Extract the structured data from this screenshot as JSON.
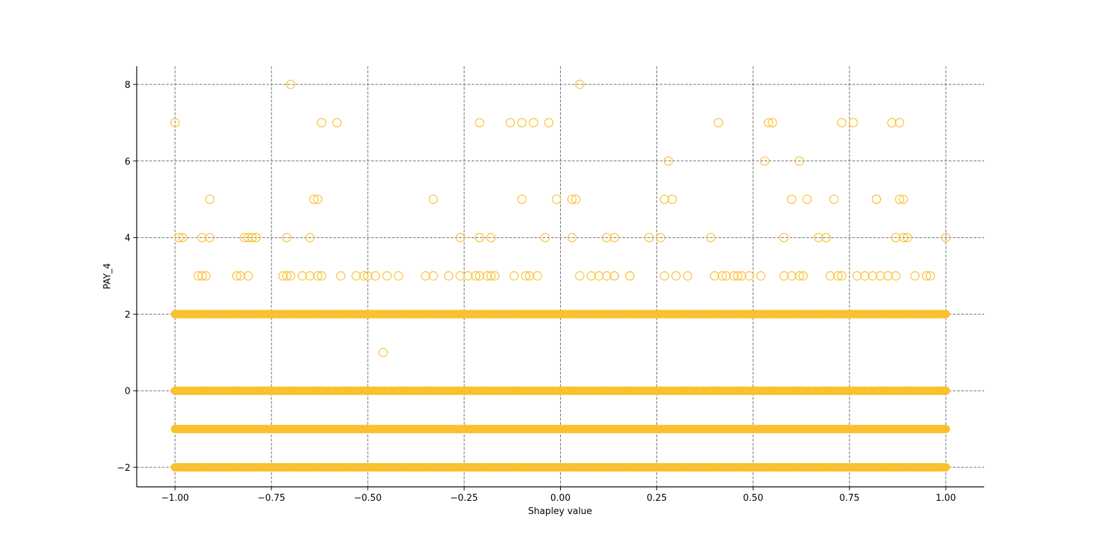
{
  "chart_data": {
    "type": "scatter",
    "title": "",
    "xlabel": "Shapley value",
    "ylabel": "PAY_4",
    "xlim": [
      -1.1,
      1.1
    ],
    "ylim": [
      -2.5,
      8.5
    ],
    "xticks": [
      -1.0,
      -0.75,
      -0.5,
      -0.25,
      0.0,
      0.25,
      0.5,
      0.75,
      1.0
    ],
    "xtick_labels": [
      "−1.00",
      "−0.75",
      "−0.50",
      "−0.25",
      "0.00",
      "0.25",
      "0.50",
      "0.75",
      "1.00"
    ],
    "yticks": [
      -2,
      0,
      2,
      4,
      6,
      8
    ],
    "ytick_labels": [
      "−2",
      "0",
      "2",
      "4",
      "6",
      "8"
    ],
    "grid": true,
    "grid_style": "dashed",
    "legend": null,
    "marker": "hollow-circle",
    "marker_color": "#FBC02D",
    "grid_color": "#707070",
    "dense_bands": [
      {
        "y": 2,
        "x_range": [
          -1.0,
          1.0
        ],
        "note": "many overlapping points spanning full range"
      },
      {
        "y": 0,
        "x_range": [
          -1.0,
          1.0
        ],
        "note": "many overlapping points spanning full range"
      },
      {
        "y": -1,
        "x_range": [
          -1.0,
          1.0
        ],
        "note": "many overlapping points spanning full range"
      },
      {
        "y": -2,
        "x_range": [
          -1.0,
          1.0
        ],
        "note": "many overlapping points spanning full range"
      }
    ],
    "points": [
      {
        "x": -0.7,
        "y": 8
      },
      {
        "x": 0.05,
        "y": 8
      },
      {
        "x": -1.0,
        "y": 7
      },
      {
        "x": -0.62,
        "y": 7
      },
      {
        "x": -0.58,
        "y": 7
      },
      {
        "x": -0.21,
        "y": 7
      },
      {
        "x": -0.13,
        "y": 7
      },
      {
        "x": -0.1,
        "y": 7
      },
      {
        "x": -0.07,
        "y": 7
      },
      {
        "x": -0.03,
        "y": 7
      },
      {
        "x": 0.41,
        "y": 7
      },
      {
        "x": 0.54,
        "y": 7
      },
      {
        "x": 0.55,
        "y": 7
      },
      {
        "x": 0.73,
        "y": 7
      },
      {
        "x": 0.76,
        "y": 7
      },
      {
        "x": 0.86,
        "y": 7
      },
      {
        "x": 0.88,
        "y": 7
      },
      {
        "x": 0.28,
        "y": 6
      },
      {
        "x": 0.53,
        "y": 6
      },
      {
        "x": 0.62,
        "y": 6
      },
      {
        "x": -0.91,
        "y": 5
      },
      {
        "x": -0.64,
        "y": 5
      },
      {
        "x": -0.63,
        "y": 5
      },
      {
        "x": -0.33,
        "y": 5
      },
      {
        "x": -0.1,
        "y": 5
      },
      {
        "x": -0.01,
        "y": 5
      },
      {
        "x": 0.03,
        "y": 5
      },
      {
        "x": 0.04,
        "y": 5
      },
      {
        "x": 0.27,
        "y": 5
      },
      {
        "x": 0.29,
        "y": 5
      },
      {
        "x": 0.6,
        "y": 5
      },
      {
        "x": 0.64,
        "y": 5
      },
      {
        "x": 0.71,
        "y": 5
      },
      {
        "x": 0.82,
        "y": 5
      },
      {
        "x": 0.82,
        "y": 5
      },
      {
        "x": 0.88,
        "y": 5
      },
      {
        "x": 0.89,
        "y": 5
      },
      {
        "x": -0.99,
        "y": 4
      },
      {
        "x": -0.98,
        "y": 4
      },
      {
        "x": -0.93,
        "y": 4
      },
      {
        "x": -0.91,
        "y": 4
      },
      {
        "x": -0.82,
        "y": 4
      },
      {
        "x": -0.81,
        "y": 4
      },
      {
        "x": -0.8,
        "y": 4
      },
      {
        "x": -0.79,
        "y": 4
      },
      {
        "x": -0.71,
        "y": 4
      },
      {
        "x": -0.65,
        "y": 4
      },
      {
        "x": -0.26,
        "y": 4
      },
      {
        "x": -0.21,
        "y": 4
      },
      {
        "x": -0.18,
        "y": 4
      },
      {
        "x": -0.04,
        "y": 4
      },
      {
        "x": 0.03,
        "y": 4
      },
      {
        "x": 0.12,
        "y": 4
      },
      {
        "x": 0.14,
        "y": 4
      },
      {
        "x": 0.23,
        "y": 4
      },
      {
        "x": 0.26,
        "y": 4
      },
      {
        "x": 0.39,
        "y": 4
      },
      {
        "x": 0.58,
        "y": 4
      },
      {
        "x": 0.67,
        "y": 4
      },
      {
        "x": 0.69,
        "y": 4
      },
      {
        "x": 0.87,
        "y": 4
      },
      {
        "x": 0.89,
        "y": 4
      },
      {
        "x": 0.9,
        "y": 4
      },
      {
        "x": 1.0,
        "y": 4
      },
      {
        "x": -0.94,
        "y": 3
      },
      {
        "x": -0.93,
        "y": 3
      },
      {
        "x": -0.92,
        "y": 3
      },
      {
        "x": -0.84,
        "y": 3
      },
      {
        "x": -0.83,
        "y": 3
      },
      {
        "x": -0.81,
        "y": 3
      },
      {
        "x": -0.72,
        "y": 3
      },
      {
        "x": -0.71,
        "y": 3
      },
      {
        "x": -0.7,
        "y": 3
      },
      {
        "x": -0.67,
        "y": 3
      },
      {
        "x": -0.65,
        "y": 3
      },
      {
        "x": -0.63,
        "y": 3
      },
      {
        "x": -0.62,
        "y": 3
      },
      {
        "x": -0.57,
        "y": 3
      },
      {
        "x": -0.53,
        "y": 3
      },
      {
        "x": -0.51,
        "y": 3
      },
      {
        "x": -0.5,
        "y": 3
      },
      {
        "x": -0.48,
        "y": 3
      },
      {
        "x": -0.45,
        "y": 3
      },
      {
        "x": -0.42,
        "y": 3
      },
      {
        "x": -0.35,
        "y": 3
      },
      {
        "x": -0.33,
        "y": 3
      },
      {
        "x": -0.29,
        "y": 3
      },
      {
        "x": -0.26,
        "y": 3
      },
      {
        "x": -0.24,
        "y": 3
      },
      {
        "x": -0.22,
        "y": 3
      },
      {
        "x": -0.21,
        "y": 3
      },
      {
        "x": -0.19,
        "y": 3
      },
      {
        "x": -0.18,
        "y": 3
      },
      {
        "x": -0.17,
        "y": 3
      },
      {
        "x": -0.12,
        "y": 3
      },
      {
        "x": -0.09,
        "y": 3
      },
      {
        "x": -0.08,
        "y": 3
      },
      {
        "x": -0.06,
        "y": 3
      },
      {
        "x": 0.05,
        "y": 3
      },
      {
        "x": 0.08,
        "y": 3
      },
      {
        "x": 0.1,
        "y": 3
      },
      {
        "x": 0.12,
        "y": 3
      },
      {
        "x": 0.14,
        "y": 3
      },
      {
        "x": 0.14,
        "y": 3
      },
      {
        "x": 0.18,
        "y": 3
      },
      {
        "x": 0.18,
        "y": 3
      },
      {
        "x": 0.27,
        "y": 3
      },
      {
        "x": 0.3,
        "y": 3
      },
      {
        "x": 0.33,
        "y": 3
      },
      {
        "x": 0.4,
        "y": 3
      },
      {
        "x": 0.42,
        "y": 3
      },
      {
        "x": 0.43,
        "y": 3
      },
      {
        "x": 0.45,
        "y": 3
      },
      {
        "x": 0.46,
        "y": 3
      },
      {
        "x": 0.47,
        "y": 3
      },
      {
        "x": 0.49,
        "y": 3
      },
      {
        "x": 0.52,
        "y": 3
      },
      {
        "x": 0.58,
        "y": 3
      },
      {
        "x": 0.6,
        "y": 3
      },
      {
        "x": 0.62,
        "y": 3
      },
      {
        "x": 0.63,
        "y": 3
      },
      {
        "x": 0.7,
        "y": 3
      },
      {
        "x": 0.72,
        "y": 3
      },
      {
        "x": 0.73,
        "y": 3
      },
      {
        "x": 0.77,
        "y": 3
      },
      {
        "x": 0.79,
        "y": 3
      },
      {
        "x": 0.81,
        "y": 3
      },
      {
        "x": 0.83,
        "y": 3
      },
      {
        "x": 0.85,
        "y": 3
      },
      {
        "x": 0.87,
        "y": 3
      },
      {
        "x": 0.92,
        "y": 3
      },
      {
        "x": 0.95,
        "y": 3
      },
      {
        "x": 0.96,
        "y": 3
      },
      {
        "x": -0.46,
        "y": 1
      }
    ]
  }
}
